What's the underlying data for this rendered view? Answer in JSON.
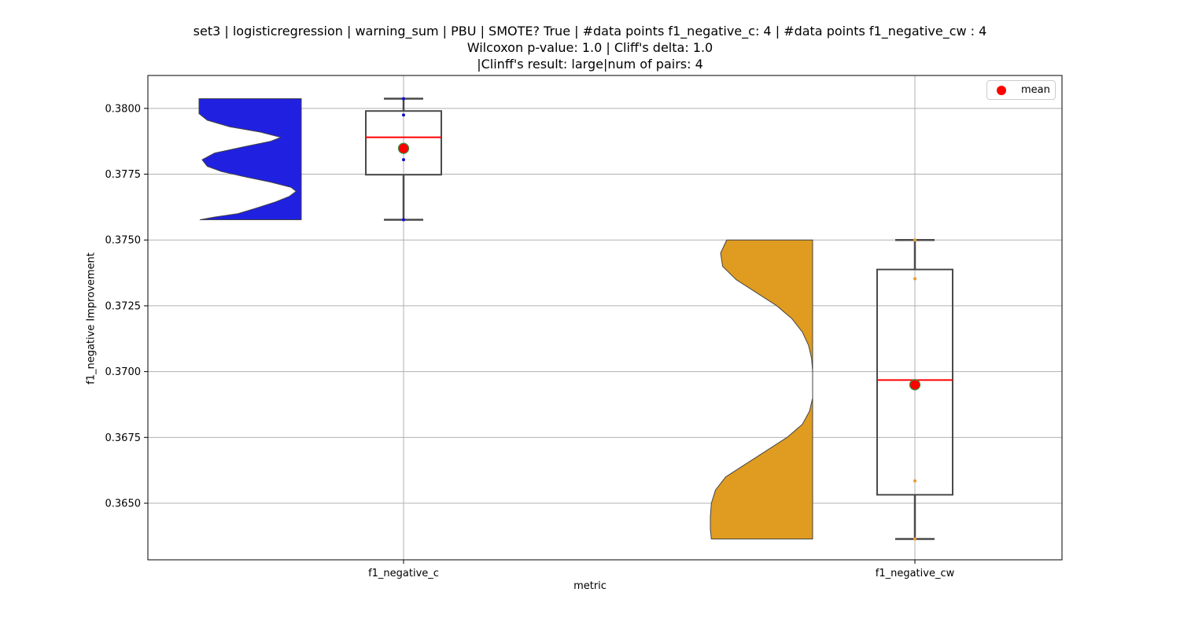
{
  "title_lines": [
    "set3 | logisticregression | warning_sum | PBU | SMOTE? True | #data points f1_negative_c: 4 | #data points f1_negative_cw : 4",
    "Wilcoxon p-value: 1.0 | Cliff's delta: 1.0",
    "|Clinff's result: large|num of pairs: 4"
  ],
  "legend": {
    "label": "mean",
    "color": "#ff0000"
  },
  "chart_data": {
    "type": "violin+box",
    "title": "set3 | logisticregression | warning_sum | PBU | SMOTE? True | #data points f1_negative_c: 4 | #data points f1_negative_cw : 4",
    "subtitle": [
      "Wilcoxon p-value: 1.0 | Cliff's delta: 1.0",
      "|Clinff's result: large|num of pairs: 4"
    ],
    "xlabel": "metric",
    "ylabel": "f1_negative Improvement",
    "ylim": [
      0.36285,
      0.38125
    ],
    "yticks": [
      0.365,
      0.3675,
      0.37,
      0.3725,
      0.375,
      0.3775,
      0.38
    ],
    "ytick_labels": [
      "0.3650",
      "0.3675",
      "0.3700",
      "0.3725",
      "0.3750",
      "0.3775",
      "0.3800"
    ],
    "grid": true,
    "legend_position": "top-right",
    "categories": [
      "f1_negative_c",
      "f1_negative_cw"
    ],
    "series": [
      {
        "name": "f1_negative_c",
        "violin_color": "#2020e0",
        "point_color": "#1010cc",
        "points": [
          0.37577,
          0.37805,
          0.37975,
          0.38037
        ],
        "box": {
          "whisker_low": 0.37577,
          "q1": 0.37748,
          "median": 0.3789,
          "q3": 0.3799,
          "whisker_high": 0.38037
        },
        "mean": 0.37848,
        "density": [
          [
            0.37577,
            0.99
          ],
          [
            0.37587,
            0.85
          ],
          [
            0.376,
            0.62
          ],
          [
            0.3762,
            0.45
          ],
          [
            0.37645,
            0.25
          ],
          [
            0.37665,
            0.12
          ],
          [
            0.37685,
            0.05
          ],
          [
            0.377,
            0.1
          ],
          [
            0.3772,
            0.3
          ],
          [
            0.3774,
            0.55
          ],
          [
            0.3776,
            0.78
          ],
          [
            0.3778,
            0.92
          ],
          [
            0.37805,
            0.97
          ],
          [
            0.3783,
            0.85
          ],
          [
            0.37855,
            0.55
          ],
          [
            0.37875,
            0.3
          ],
          [
            0.3789,
            0.2
          ],
          [
            0.3791,
            0.4
          ],
          [
            0.3793,
            0.7
          ],
          [
            0.37955,
            0.92
          ],
          [
            0.3798,
            1.0
          ],
          [
            0.38037,
            1.0
          ]
        ]
      },
      {
        "name": "f1_negative_cw",
        "violin_color": "#e09c20",
        "point_color": "#e89a30",
        "points": [
          0.36364,
          0.36585,
          0.37353,
          0.375
        ],
        "box": {
          "whisker_low": 0.36364,
          "q1": 0.36532,
          "median": 0.36968,
          "q3": 0.37388,
          "whisker_high": 0.375
        },
        "mean": 0.3695,
        "density": [
          [
            0.36364,
            0.99
          ],
          [
            0.364,
            1.0
          ],
          [
            0.3645,
            1.0
          ],
          [
            0.365,
            0.99
          ],
          [
            0.3655,
            0.95
          ],
          [
            0.366,
            0.85
          ],
          [
            0.3665,
            0.65
          ],
          [
            0.367,
            0.45
          ],
          [
            0.3675,
            0.25
          ],
          [
            0.368,
            0.1
          ],
          [
            0.3685,
            0.03
          ],
          [
            0.369,
            0.0
          ],
          [
            0.3695,
            0.0
          ],
          [
            0.37,
            0.0
          ],
          [
            0.3705,
            0.01
          ],
          [
            0.371,
            0.04
          ],
          [
            0.3715,
            0.1
          ],
          [
            0.372,
            0.2
          ],
          [
            0.3725,
            0.35
          ],
          [
            0.373,
            0.55
          ],
          [
            0.3735,
            0.75
          ],
          [
            0.374,
            0.88
          ],
          [
            0.3745,
            0.9
          ],
          [
            0.375,
            0.84
          ]
        ]
      }
    ]
  }
}
